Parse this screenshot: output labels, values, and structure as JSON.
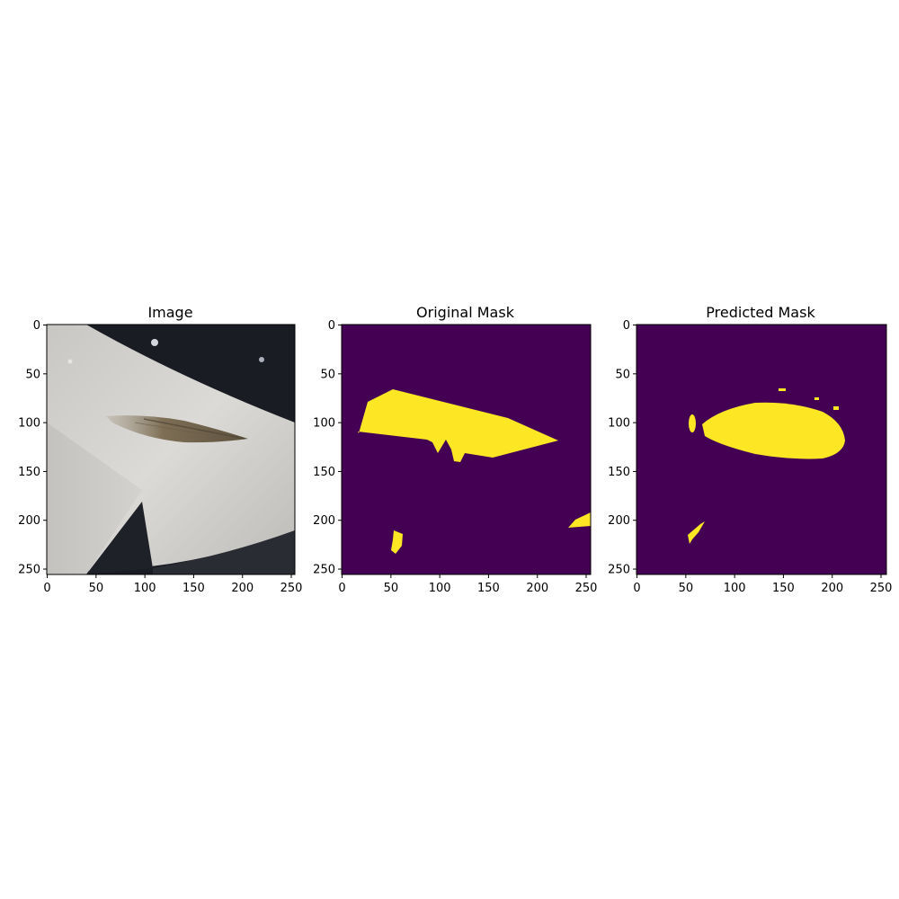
{
  "figure": {
    "background": "#ffffff",
    "panels": [
      {
        "id": "image",
        "title": "Image",
        "xticks": [
          "0",
          "50",
          "100",
          "150",
          "200",
          "250"
        ],
        "yticks": [
          "0",
          "50",
          "100",
          "150",
          "200",
          "250"
        ],
        "xlim": [
          0,
          256
        ],
        "ylim": [
          256,
          0
        ]
      },
      {
        "id": "original-mask",
        "title": "Original Mask",
        "xticks": [
          "0",
          "50",
          "100",
          "150",
          "200",
          "250"
        ],
        "yticks": [
          "0",
          "50",
          "100",
          "150",
          "200",
          "250"
        ],
        "xlim": [
          0,
          256
        ],
        "ylim": [
          256,
          0
        ]
      },
      {
        "id": "predicted-mask",
        "title": "Predicted Mask",
        "xticks": [
          "0",
          "50",
          "100",
          "150",
          "200",
          "250"
        ],
        "yticks": [
          "0",
          "50",
          "100",
          "150",
          "200",
          "250"
        ],
        "xlim": [
          0,
          256
        ],
        "ylim": [
          256,
          0
        ]
      }
    ],
    "colors": {
      "mask_background": "#440154",
      "mask_foreground": "#fde725",
      "mask_edge": "#21a585",
      "car_paint": "#d8d6d2",
      "car_shadow": "#1a1c24",
      "scratch": "#8a7a5e"
    }
  }
}
